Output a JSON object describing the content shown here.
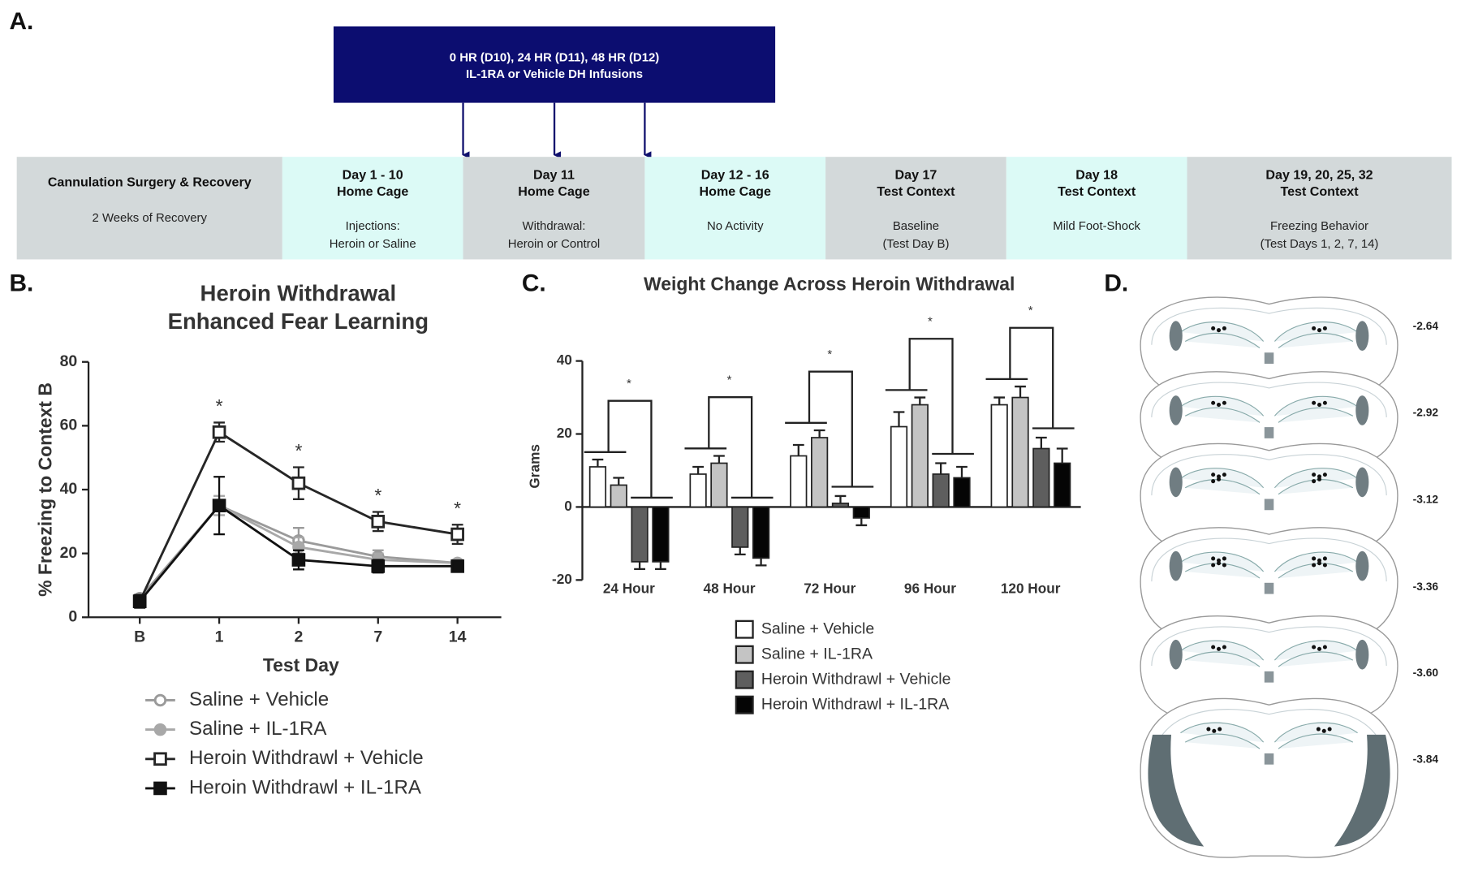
{
  "panel_a": {
    "label": "A.",
    "infusion": [
      "0 HR (D10), 24 HR (D11), 48 HR (D12)",
      "IL-1RA or Vehicle DH Infusions"
    ],
    "stages": [
      {
        "title": [
          "Cannulation Surgery & Recovery"
        ],
        "description": [
          "2 Weeks of Recovery"
        ]
      },
      {
        "title": [
          "Day 1 - 10",
          "Home Cage"
        ],
        "description": [
          "Injections:",
          "Heroin or Saline"
        ]
      },
      {
        "title": [
          "Day 11",
          "Home Cage"
        ],
        "description": [
          "Withdrawal:",
          "Heroin or Control"
        ]
      },
      {
        "title": [
          "Day 12 - 16",
          "Home Cage"
        ],
        "description": [
          "No Activity"
        ]
      },
      {
        "title": [
          "Day 17",
          "Test Context"
        ],
        "description": [
          "Baseline",
          "(Test Day B)"
        ]
      },
      {
        "title": [
          "Day 18",
          "Test Context"
        ],
        "description": [
          "Mild Foot-Shock"
        ]
      },
      {
        "title": [
          "Day 19, 20, 25, 32",
          "Test Context"
        ],
        "description": [
          "Freezing Behavior",
          "(Test Days 1, 2, 7, 14)"
        ]
      }
    ]
  },
  "chart_data": [
    {
      "type": "line",
      "panel": "B.",
      "title": [
        "Heroin  Withdrawal",
        "Enhanced  Fear Learning"
      ],
      "y_label": "% Freezing to Context B",
      "x_label": "Test Day",
      "categories": [
        "B",
        "1",
        "2",
        "7",
        "14"
      ],
      "ylim": [
        0,
        80
      ],
      "yticks": [
        0,
        20,
        40,
        60,
        80
      ],
      "significance": [
        null,
        "*",
        "*",
        "*",
        "*"
      ],
      "series": [
        {
          "name": "Saline + Vehicle",
          "color": "#9a9a9a",
          "marker": "circle-open",
          "values": [
            6,
            35,
            24,
            19,
            17
          ],
          "errors": [
            1,
            3,
            4,
            2,
            1
          ]
        },
        {
          "name": "Saline + IL-1RA",
          "color": "#a8a8a8",
          "marker": "circle",
          "values": [
            5,
            35,
            22,
            18,
            17
          ],
          "errors": [
            1,
            3,
            3,
            2,
            1
          ]
        },
        {
          "name": "Heroin Withdrawl + Vehicle",
          "color": "#262626",
          "marker": "square-open",
          "values": [
            5,
            58,
            42,
            30,
            26
          ],
          "errors": [
            2,
            3,
            5,
            3,
            3
          ]
        },
        {
          "name": "Heroin Withdrawl + IL-1RA",
          "color": "#111111",
          "marker": "square",
          "values": [
            5,
            35,
            18,
            16,
            16
          ],
          "errors": [
            2,
            9,
            3,
            2,
            1
          ]
        }
      ]
    },
    {
      "type": "bar",
      "panel": "C.",
      "title": "Weight Change  Across Heroin  Withdrawal",
      "y_label": "Grams",
      "categories": [
        "24 Hour",
        "48 Hour",
        "72 Hour",
        "96 Hour",
        "120 Hour"
      ],
      "ylim": [
        -20,
        40
      ],
      "yticks": [
        -20,
        0,
        20,
        40
      ],
      "significance": [
        "*",
        "*",
        "*",
        "*",
        "*"
      ],
      "series": [
        {
          "name": "Saline + Vehicle",
          "color": "#ffffff",
          "values": [
            11,
            9,
            14,
            22,
            28
          ],
          "errors": [
            2,
            2,
            3,
            4,
            2
          ]
        },
        {
          "name": "Saline + IL-1RA",
          "color": "#c4c4c4",
          "values": [
            6,
            12,
            19,
            28,
            30
          ],
          "errors": [
            2,
            2,
            2,
            2,
            3
          ]
        },
        {
          "name": "Heroin Withdrawl + Vehicle",
          "color": "#5e5e5e",
          "values": [
            -15,
            -11,
            1,
            9,
            16
          ],
          "errors": [
            2,
            2,
            2,
            3,
            3
          ]
        },
        {
          "name": "Heroin Withdrawl + IL-1RA",
          "color": "#050505",
          "values": [
            -15,
            -14,
            -3,
            8,
            12
          ],
          "errors": [
            2,
            2,
            2,
            3,
            4
          ]
        }
      ]
    }
  ],
  "panel_d": {
    "label": "D.",
    "coordinates": [
      "-2.64",
      "-2.92",
      "-3.12",
      "-3.36",
      "-3.60",
      "-3.84"
    ]
  }
}
